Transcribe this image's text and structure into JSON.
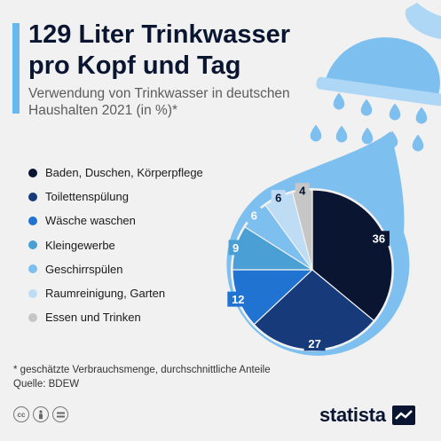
{
  "title": "129 Liter Trinkwasser pro Kopf und Tag",
  "subtitle": "Verwendung von Trinkwasser in deutschen Haushalten 2021 (in %)*",
  "chart_data": {
    "type": "pie",
    "unit": "%",
    "series": [
      {
        "name": "Baden, Duschen, Körperpflege",
        "value": 36,
        "color": "#0a1631"
      },
      {
        "name": "Toilettenspülung",
        "value": 27,
        "color": "#173a7a"
      },
      {
        "name": "Wäsche waschen",
        "value": 12,
        "color": "#2173d2"
      },
      {
        "name": "Kleingewerbe",
        "value": 9,
        "color": "#4a9fd4"
      },
      {
        "name": "Geschirrspülen",
        "value": 6,
        "color": "#7dbfee"
      },
      {
        "name": "Raumreinigung, Garten",
        "value": 6,
        "color": "#bfdcf5"
      },
      {
        "name": "Essen und Trinken",
        "value": 4,
        "color": "#c6c6c6"
      }
    ],
    "shape": "water-drop under a shower head",
    "accent_color": "#7dbfee"
  },
  "footnote": {
    "note": "* geschätzte Verbrauchsmenge, durchschnittliche Anteile",
    "source": "Quelle: BDEW"
  },
  "license_icons": [
    "cc-icon",
    "attribution-icon",
    "no-derivatives-icon"
  ],
  "brand": {
    "name": "statista"
  }
}
